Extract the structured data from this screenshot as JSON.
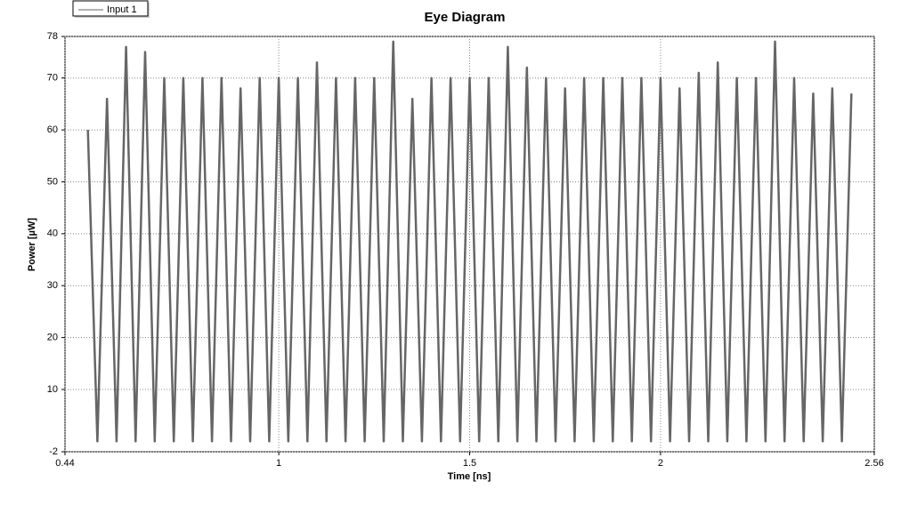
{
  "chart_data": {
    "type": "line",
    "title": "Eye Diagram",
    "x_label": "Time [ns]",
    "y_label": "Power [µW]",
    "xlim": [
      0.44,
      2.56
    ],
    "xticks": [
      0.44,
      1,
      1.5,
      2,
      2.56
    ],
    "ylim": [
      -2,
      78
    ],
    "yticks": [
      -2,
      10,
      20,
      30,
      40,
      50,
      60,
      70,
      78
    ],
    "grid": true,
    "legend": "top-left",
    "x": [
      0.5,
      0.525,
      0.55,
      0.575,
      0.6,
      0.625,
      0.65,
      0.675,
      0.7,
      0.725,
      0.75,
      0.775,
      0.8,
      0.825,
      0.85,
      0.875,
      0.9,
      0.925,
      0.95,
      0.975,
      1,
      1.025,
      1.05,
      1.075,
      1.1,
      1.125,
      1.15,
      1.175,
      1.2,
      1.225,
      1.25,
      1.275,
      1.3,
      1.325,
      1.35,
      1.375,
      1.4,
      1.425,
      1.45,
      1.475,
      1.5,
      1.525,
      1.55,
      1.575,
      1.6,
      1.625,
      1.65,
      1.675,
      1.7,
      1.725,
      1.75,
      1.775,
      1.8,
      1.825,
      1.85,
      1.875,
      1.9,
      1.925,
      1.95,
      1.975,
      2,
      2.025,
      2.05,
      2.075,
      2.1,
      2.125,
      2.15,
      2.175,
      2.2,
      2.225,
      2.25,
      2.275,
      2.3,
      2.325,
      2.35,
      2.375,
      2.4,
      2.425,
      2.45,
      2.475,
      2.5
    ],
    "series": [
      {
        "name": "Input 1",
        "color": "#666666",
        "values": [
          60,
          0,
          66,
          0,
          76,
          0,
          75,
          0,
          70,
          0,
          70,
          0,
          70,
          0,
          70,
          0,
          68,
          0,
          70,
          0,
          70,
          0,
          70,
          0,
          73,
          0,
          70,
          0,
          70,
          0,
          70,
          0,
          77,
          0,
          66,
          0,
          70,
          0,
          70,
          0,
          70,
          0,
          70,
          0,
          76,
          0,
          72,
          0,
          70,
          0,
          68,
          0,
          70,
          0,
          70,
          0,
          70,
          0,
          70,
          0,
          70,
          0,
          68,
          0,
          71,
          0,
          73,
          0,
          70,
          0,
          70,
          0,
          77,
          0,
          70,
          0,
          67,
          0,
          68,
          0,
          67
        ]
      }
    ]
  }
}
